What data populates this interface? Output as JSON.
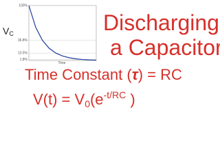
{
  "chart_data": {
    "type": "line",
    "y_label": "V",
    "y_label_sub": "C",
    "x_label": "Time",
    "x": [
      0,
      0.5,
      1,
      1.5,
      2,
      2.5,
      3,
      3.5,
      4,
      4.5,
      5
    ],
    "series": [
      {
        "color": "#1f3c9c",
        "values": [
          100,
          60.7,
          36.8,
          22.3,
          13.5,
          8.2,
          5.0,
          3.0,
          1.8,
          1.1,
          0.7
        ]
      }
    ],
    "xlim": [
      0,
      5
    ],
    "ylim": [
      0,
      100
    ],
    "yticks": [
      {
        "value": 100,
        "label": "100%"
      },
      {
        "value": 36.8,
        "label": "36.8%"
      },
      {
        "value": 13.5,
        "label": "13.5%"
      },
      {
        "value": 1.8,
        "label": "1.8%"
      }
    ],
    "grid": true
  },
  "title": {
    "line1": "Discharging",
    "line2": "a Capacitor"
  },
  "formula1": {
    "pre": "Time Constant (",
    "symbol": "τ",
    "post": ") = RC"
  },
  "formula2": {
    "pre": "V(t) = V",
    "sub": "0",
    "mid": "(e",
    "sup": "-t/RC",
    "post": " )"
  }
}
